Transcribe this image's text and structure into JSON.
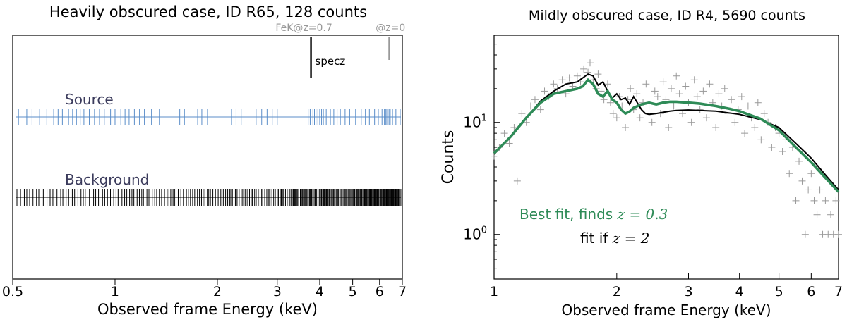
{
  "chart_data": [
    {
      "type": "scatter",
      "title": "Heavily obscured case, ID R65, 128 counts",
      "xlabel": "Observed frame Energy (keV)",
      "ylabel": "",
      "xscale": "log",
      "xlim": [
        0.5,
        7
      ],
      "xticks": [
        "0.5",
        "1",
        "2",
        "3",
        "4",
        "5",
        "6",
        "7"
      ],
      "markers": [
        {
          "label": "FeK@z=0.7",
          "energy": 3.77,
          "color": "#999999"
        },
        {
          "label": "@z=0",
          "energy": 6.4,
          "color": "#999999"
        }
      ],
      "specz_marker": {
        "label": "specz",
        "energy": 3.77,
        "color": "#000000"
      },
      "series": [
        {
          "name": "Source",
          "color": "#5b8ec9",
          "energies": [
            0.52,
            0.55,
            0.57,
            0.6,
            0.63,
            0.66,
            0.68,
            0.7,
            0.73,
            0.75,
            0.77,
            0.79,
            0.81,
            0.84,
            0.87,
            0.9,
            0.93,
            0.97,
            1.0,
            1.04,
            1.07,
            1.1,
            1.14,
            1.18,
            1.22,
            1.28,
            1.35,
            1.55,
            1.6,
            1.75,
            1.8,
            1.87,
            1.93,
            2.2,
            2.27,
            2.35,
            2.6,
            2.7,
            2.8,
            2.9,
            3.0,
            3.7,
            3.75,
            3.82,
            3.86,
            3.9,
            3.95,
            4.0,
            4.05,
            4.1,
            4.18,
            4.3,
            4.4,
            4.5,
            4.6,
            4.75,
            4.9,
            5.1,
            5.3,
            5.45,
            5.6,
            5.8,
            5.95,
            6.1,
            6.2,
            6.25,
            6.3,
            6.35,
            6.4,
            6.45,
            6.55,
            6.7,
            6.9
          ]
        },
        {
          "name": "Background",
          "color": "#000000",
          "density": "increasing toward high energy"
        }
      ]
    },
    {
      "type": "line",
      "title": "Mildly obscured case, ID R4, 5690 counts",
      "xlabel": "Observed frame Energy (keV)",
      "ylabel": "Counts",
      "xscale": "log",
      "yscale": "log",
      "xlim": [
        1,
        7
      ],
      "ylim": [
        0.4,
        60
      ],
      "xticks": [
        "1",
        "2",
        "3",
        "4",
        "5",
        "6",
        "7"
      ],
      "yticks": [
        {
          "value": 1,
          "base": "10",
          "exp": "0"
        },
        {
          "value": 10,
          "base": "10",
          "exp": "1"
        }
      ],
      "series": [
        {
          "name": "Best fit",
          "label_text": "Best fit, finds ",
          "label_math": "z = 0.3",
          "color": "#2e8b57",
          "x": [
            1.0,
            1.1,
            1.2,
            1.3,
            1.4,
            1.5,
            1.6,
            1.65,
            1.7,
            1.75,
            1.8,
            1.85,
            1.9,
            1.95,
            2.0,
            2.05,
            2.1,
            2.15,
            2.2,
            2.3,
            2.4,
            2.5,
            2.6,
            2.7,
            2.8,
            3.0,
            3.2,
            3.5,
            3.8,
            4.0,
            4.5,
            5.0,
            5.5,
            6.0,
            6.5,
            7.0
          ],
          "y": [
            5.3,
            7.5,
            11,
            15,
            18,
            19,
            20,
            21,
            24,
            22,
            18,
            17,
            19,
            16,
            15,
            13,
            12,
            12.5,
            13.5,
            14.5,
            15,
            14.5,
            15,
            15.3,
            15.3,
            15,
            14.7,
            14,
            13.2,
            12.6,
            10.8,
            8.5,
            6.0,
            4.4,
            3.2,
            2.4
          ]
        },
        {
          "name": "fit if z=2",
          "label_text": "fit if ",
          "label_math": "z = 2",
          "color": "#000000",
          "x": [
            1.0,
            1.1,
            1.2,
            1.3,
            1.4,
            1.5,
            1.6,
            1.7,
            1.75,
            1.8,
            1.85,
            1.9,
            1.95,
            2.0,
            2.05,
            2.1,
            2.15,
            2.2,
            2.3,
            2.35,
            2.4,
            2.5,
            2.6,
            2.7,
            2.8,
            3.0,
            3.5,
            4.0,
            4.5,
            5.0,
            5.5,
            6.0,
            6.5,
            7.0
          ],
          "y": [
            5.2,
            7.5,
            11,
            15.5,
            19,
            22,
            23,
            27,
            26,
            21.5,
            23,
            19,
            16.5,
            18,
            16,
            16.5,
            14.5,
            17,
            13,
            12,
            11.8,
            12,
            12.3,
            12.6,
            12.8,
            12.9,
            12.6,
            11.8,
            10.6,
            9.0,
            6.5,
            4.8,
            3.4,
            2.5
          ]
        },
        {
          "name": "data",
          "color": "#999999",
          "marker": "+",
          "x": [
            1.0,
            1.03,
            1.06,
            1.09,
            1.12,
            1.14,
            1.17,
            1.2,
            1.23,
            1.26,
            1.3,
            1.33,
            1.36,
            1.4,
            1.43,
            1.47,
            1.5,
            1.53,
            1.56,
            1.6,
            1.63,
            1.66,
            1.7,
            1.72,
            1.75,
            1.78,
            1.8,
            1.83,
            1.86,
            1.9,
            1.93,
            1.96,
            2.0,
            2.03,
            2.06,
            2.1,
            2.13,
            2.16,
            2.2,
            2.24,
            2.28,
            2.32,
            2.36,
            2.4,
            2.44,
            2.48,
            2.52,
            2.56,
            2.6,
            2.64,
            2.68,
            2.72,
            2.76,
            2.8,
            2.85,
            2.9,
            2.95,
            3.0,
            3.05,
            3.1,
            3.15,
            3.2,
            3.26,
            3.32,
            3.38,
            3.44,
            3.5,
            3.56,
            3.62,
            3.68,
            3.75,
            3.82,
            3.9,
            3.97,
            4.05,
            4.12,
            4.2,
            4.28,
            4.36,
            4.44,
            4.52,
            4.6,
            4.7,
            4.8,
            4.9,
            5.0,
            5.1,
            5.2,
            5.3,
            5.4,
            5.5,
            5.6,
            5.7,
            5.8,
            5.9,
            6.0,
            6.1,
            6.2,
            6.3,
            6.4,
            6.5,
            6.6,
            6.7,
            6.8,
            6.9,
            7.0
          ],
          "y": [
            5,
            6,
            8,
            6.5,
            9,
            3,
            12,
            10,
            14,
            16,
            13,
            19,
            17,
            22,
            20,
            24,
            18,
            25,
            21,
            26,
            23,
            30,
            28,
            34,
            24,
            20,
            27,
            19,
            16,
            22,
            15,
            12,
            11,
            17,
            14,
            9,
            16,
            20,
            13,
            18,
            11,
            15,
            22,
            14,
            10,
            19,
            17,
            12,
            23,
            16,
            9,
            20,
            14,
            26,
            18,
            12,
            21,
            15,
            10,
            24,
            17,
            13,
            19,
            11,
            22,
            15,
            9,
            18,
            14,
            20,
            12,
            16,
            10,
            13,
            17,
            8,
            14,
            11,
            9,
            15,
            7,
            12,
            10,
            6,
            9,
            8,
            5.5,
            7,
            3.5,
            6,
            2,
            4.5,
            3,
            1,
            2.5,
            3.5,
            2,
            1.5,
            2.5,
            1,
            2,
            1,
            1.5,
            1,
            2,
            1
          ]
        }
      ]
    }
  ]
}
